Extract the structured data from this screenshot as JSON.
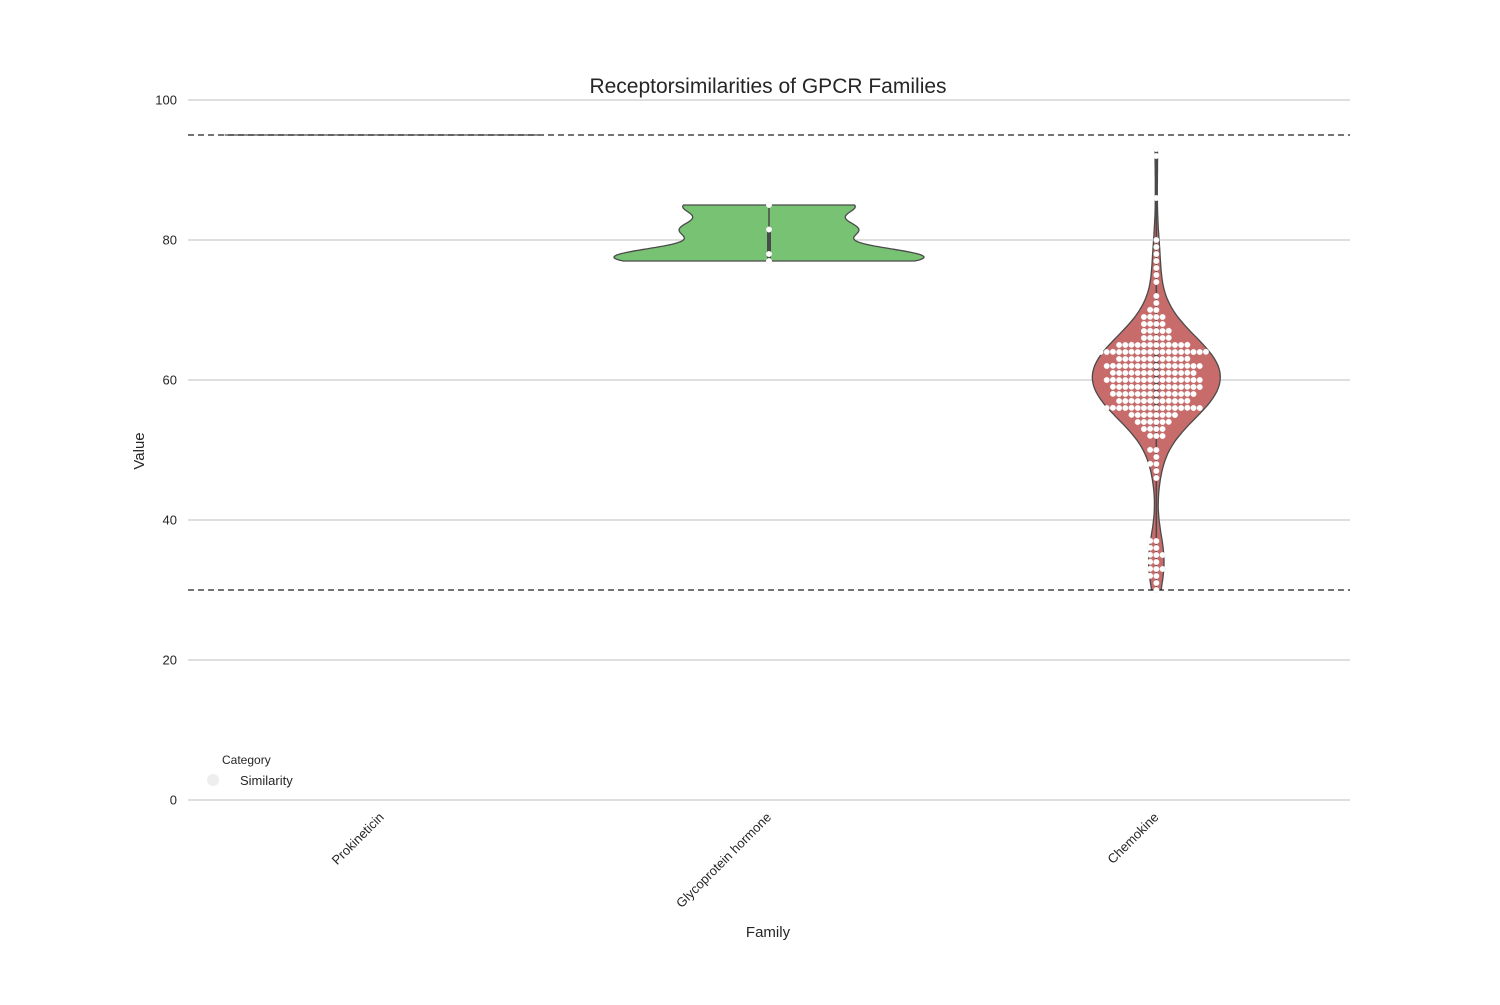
{
  "chart_data": {
    "type": "violin",
    "title": "Receptorsimilarities of GPCR Families",
    "xlabel": "Family",
    "ylabel": "Value",
    "categories": [
      "Prokineticin",
      "Glycoprotein hormone",
      "Chemokine"
    ],
    "ylim": [
      0,
      100
    ],
    "yticks": [
      0,
      20,
      40,
      60,
      80,
      100
    ],
    "grid": "horizontal",
    "reference_lines": [
      95,
      30
    ],
    "colors": {
      "Prokineticin": "#5975a4",
      "Glycoprotein hormone": "#78c273",
      "Chemokine": "#c86b6b",
      "outline": "#4a4a4a",
      "points": "#ffffff",
      "reference_line": "#222222",
      "grid": "#cccccc"
    },
    "legend": {
      "title": "Category",
      "position": "lower-left",
      "entries": [
        {
          "label": "Similarity",
          "color": "#eeeeee"
        }
      ]
    },
    "series": [
      {
        "category": "Prokineticin",
        "range": [
          95,
          95
        ],
        "values": [
          95,
          95
        ]
      },
      {
        "category": "Glycoprotein hormone",
        "range": [
          77,
          85
        ],
        "values": [
          77,
          78,
          81.5,
          85
        ]
      },
      {
        "category": "Chemokine",
        "range": [
          30,
          93
        ],
        "values": [
          30,
          31,
          32,
          32,
          33,
          33,
          33,
          34,
          34,
          35,
          35,
          35,
          36,
          36,
          37,
          37,
          46,
          47,
          48,
          48,
          49,
          50,
          50,
          52,
          52,
          52,
          53,
          53,
          53,
          53,
          54,
          54,
          54,
          54,
          54,
          54,
          55,
          55,
          55,
          55,
          55,
          55,
          55,
          55,
          56,
          56,
          56,
          56,
          56,
          56,
          56,
          56,
          56,
          56,
          56,
          56,
          56,
          56,
          56,
          56,
          57,
          57,
          57,
          57,
          57,
          57,
          57,
          57,
          57,
          57,
          57,
          57,
          58,
          58,
          58,
          58,
          58,
          58,
          58,
          58,
          58,
          58,
          58,
          58,
          58,
          58,
          59,
          59,
          59,
          59,
          59,
          59,
          59,
          59,
          59,
          59,
          59,
          59,
          59,
          59,
          59,
          60,
          60,
          60,
          60,
          60,
          60,
          60,
          60,
          60,
          60,
          60,
          60,
          60,
          60,
          60,
          60,
          61,
          61,
          61,
          61,
          61,
          61,
          61,
          61,
          61,
          61,
          61,
          61,
          61,
          61,
          62,
          62,
          62,
          62,
          62,
          62,
          62,
          62,
          62,
          62,
          62,
          62,
          62,
          62,
          62,
          62,
          63,
          63,
          63,
          63,
          63,
          63,
          63,
          63,
          63,
          63,
          63,
          63,
          64,
          64,
          64,
          64,
          64,
          64,
          64,
          64,
          64,
          64,
          64,
          64,
          64,
          64,
          64,
          64,
          64,
          64,
          65,
          65,
          65,
          65,
          65,
          65,
          65,
          65,
          65,
          65,
          65,
          65,
          66,
          66,
          66,
          66,
          66,
          67,
          67,
          67,
          67,
          67,
          68,
          68,
          68,
          68,
          69,
          69,
          69,
          69,
          70,
          70,
          71,
          72,
          74,
          75,
          76,
          77,
          78,
          79,
          80,
          86,
          92,
          93
        ]
      }
    ]
  }
}
